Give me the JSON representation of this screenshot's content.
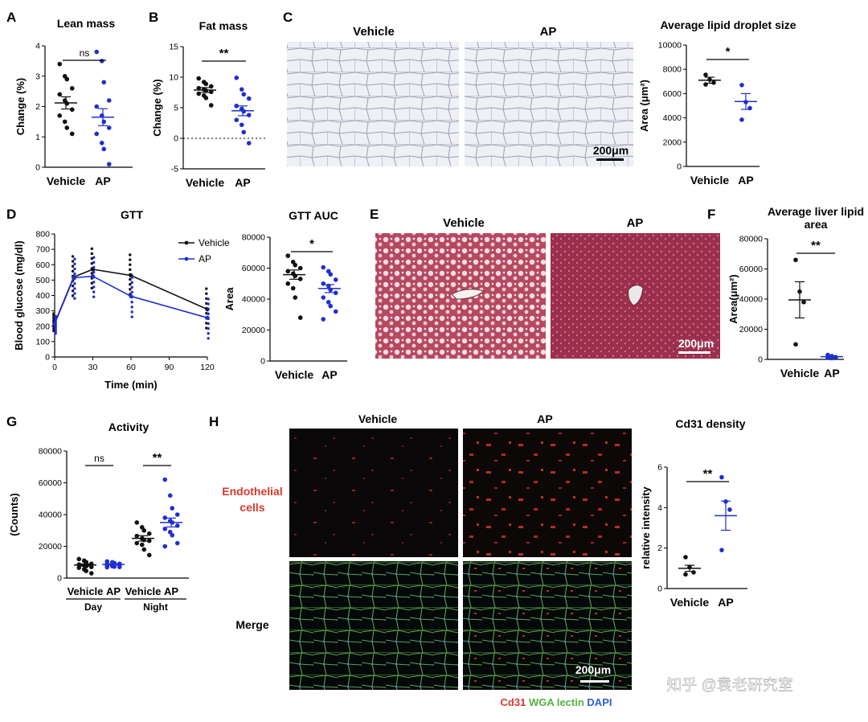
{
  "panels": {
    "A": {
      "letter": "A"
    },
    "B": {
      "letter": "B"
    },
    "C": {
      "letter": "C",
      "vehicle_title": "Vehicle",
      "ap_title": "AP",
      "scale": "200μm"
    },
    "D": {
      "letter": "D"
    },
    "E": {
      "letter": "E",
      "vehicle_title": "Vehicle",
      "ap_title": "AP",
      "scale": "200μm"
    },
    "F": {
      "letter": "F"
    },
    "G": {
      "letter": "G"
    },
    "H": {
      "letter": "H",
      "vehicle_title": "Vehicle",
      "ap_title": "AP",
      "row1_label_a": "Endothelial",
      "row1_label_b": "cells",
      "row2_label": "Merge",
      "scale": "200μm",
      "legend_cd31": "Cd31",
      "legend_wga": "WGA lectin",
      "legend_dapi": "DAPI"
    }
  },
  "watermark": "知乎 @袁老研究室",
  "colors": {
    "vehicle": "#111111",
    "ap": "#1f2fd0",
    "endothelial_label": "#d8382c",
    "cd31": "#d8382c",
    "wga": "#55b040",
    "dapi": "#2f5fd0"
  },
  "chart_data": [
    {
      "id": "A",
      "type": "scatter",
      "title": "Lean mass",
      "ylabel": "Change (%)",
      "xlabel": "",
      "categories": [
        "Vehicle",
        "AP"
      ],
      "ylim": [
        0,
        4
      ],
      "yticks": [
        0,
        1,
        2,
        3,
        4
      ],
      "series": [
        {
          "name": "Vehicle",
          "mean": 2.12,
          "sem": 0.2,
          "values": [
            3.4,
            3.0,
            2.9,
            2.6,
            2.4,
            2.2,
            2.1,
            1.9,
            1.7,
            1.5,
            1.3,
            1.1
          ]
        },
        {
          "name": "AP",
          "mean": 1.65,
          "sem": 0.28,
          "values": [
            3.8,
            3.5,
            2.8,
            2.2,
            2.0,
            1.7,
            1.5,
            1.3,
            1.1,
            0.8,
            0.6,
            0.1
          ]
        }
      ],
      "significance": "ns"
    },
    {
      "id": "B",
      "type": "scatter",
      "title": "Fat mass",
      "ylabel": "Change (%)",
      "xlabel": "",
      "categories": [
        "Vehicle",
        "AP"
      ],
      "ylim": [
        -5,
        15
      ],
      "yticks": [
        -5,
        0,
        5,
        10,
        15
      ],
      "zero_line": "dotted",
      "series": [
        {
          "name": "Vehicle",
          "mean": 7.9,
          "sem": 0.4,
          "values": [
            9.8,
            9.2,
            8.9,
            8.5,
            8.2,
            8.0,
            7.8,
            7.6,
            7.3,
            7.0,
            6.6,
            5.4
          ]
        },
        {
          "name": "AP",
          "mean": 4.5,
          "sem": 0.8,
          "values": [
            9.9,
            8.0,
            7.2,
            6.5,
            5.3,
            4.8,
            4.4,
            3.8,
            3.0,
            2.2,
            1.0,
            -0.8
          ]
        }
      ],
      "significance": "**"
    },
    {
      "id": "C",
      "type": "scatter",
      "title": "Average lipid droplet size",
      "ylabel": "Area (μm²)",
      "xlabel": "",
      "categories": [
        "Vehicle",
        "AP"
      ],
      "ylim": [
        0,
        10000
      ],
      "yticks": [
        0,
        2000,
        4000,
        6000,
        8000,
        10000
      ],
      "series": [
        {
          "name": "Vehicle",
          "mean": 7100,
          "sem": 250,
          "values": [
            7550,
            7150,
            6900,
            6750
          ]
        },
        {
          "name": "AP",
          "mean": 5350,
          "sem": 650,
          "values": [
            6700,
            5300,
            4800,
            3850
          ]
        }
      ],
      "significance": "*"
    },
    {
      "id": "D",
      "type": "line",
      "title": "GTT",
      "ylabel": "Blood glucose (mg/dl)",
      "xlabel": "Time (min)",
      "x": [
        0,
        15,
        30,
        60,
        120
      ],
      "xticks": [
        0,
        30,
        60,
        90,
        120
      ],
      "xlim": [
        0,
        120
      ],
      "ylim": [
        0,
        800
      ],
      "yticks": [
        0,
        100,
        200,
        300,
        400,
        500,
        600,
        700,
        800
      ],
      "legend": "top-right",
      "series": [
        {
          "name": "Vehicle",
          "values": [
            220,
            520,
            570,
            530,
            310
          ]
        },
        {
          "name": "AP",
          "values": [
            215,
            515,
            525,
            395,
            255
          ]
        }
      ]
    },
    {
      "id": "D2",
      "type": "scatter",
      "title": "GTT AUC",
      "ylabel": "Area",
      "xlabel": "",
      "categories": [
        "Vehicle",
        "AP"
      ],
      "ylim": [
        0,
        80000
      ],
      "yticks": [
        0,
        20000,
        40000,
        60000,
        80000
      ],
      "series": [
        {
          "name": "Vehicle",
          "mean": 55800,
          "sem": 3000,
          "values": [
            68000,
            64000,
            62000,
            60000,
            58000,
            56500,
            55000,
            53000,
            50000,
            47000,
            41000,
            28000
          ]
        },
        {
          "name": "AP",
          "mean": 46800,
          "sem": 2600,
          "values": [
            60500,
            58000,
            56000,
            52500,
            50000,
            48500,
            46000,
            44000,
            41000,
            38000,
            35500,
            32000,
            27000
          ]
        }
      ],
      "significance": "*"
    },
    {
      "id": "F",
      "type": "scatter",
      "title": "Average liver lipid area",
      "ylabel": "Area(μm²)",
      "xlabel": "",
      "categories": [
        "Vehicle",
        "AP"
      ],
      "ylim": [
        0,
        80000
      ],
      "yticks": [
        0,
        20000,
        40000,
        60000,
        80000
      ],
      "series": [
        {
          "name": "Vehicle",
          "mean": 39500,
          "sem": 12000,
          "values": [
            66000,
            45000,
            38000,
            10000
          ]
        },
        {
          "name": "AP",
          "mean": 1800,
          "sem": 600,
          "values": [
            3000,
            2200,
            1500,
            1000,
            800
          ]
        }
      ],
      "significance": "**"
    },
    {
      "id": "G",
      "type": "scatter",
      "title": "Activity",
      "ylabel": "(Counts)",
      "xlabel": "",
      "categories": [
        "Vehicle",
        "AP",
        "Vehicle",
        "AP"
      ],
      "groups": [
        "Day",
        "Night"
      ],
      "ylim": [
        0,
        80000
      ],
      "yticks": [
        0,
        20000,
        40000,
        60000,
        80000
      ],
      "series": [
        {
          "name": "Vehicle Day",
          "mean": 8200,
          "sem": 700,
          "values": [
            12000,
            11000,
            10000,
            9000,
            8500,
            8000,
            7500,
            7000,
            6500,
            5500,
            4500,
            3000
          ]
        },
        {
          "name": "AP Day",
          "mean": 8600,
          "sem": 400,
          "values": [
            10500,
            10000,
            9500,
            9000,
            8800,
            8500,
            8300,
            8000,
            7800,
            7500,
            7200,
            7000,
            6800
          ]
        },
        {
          "name": "Vehicle Night",
          "mean": 25000,
          "sem": 1700,
          "values": [
            35000,
            32000,
            30000,
            28000,
            26500,
            25000,
            24000,
            23500,
            22000,
            21000,
            18000,
            14500
          ]
        },
        {
          "name": "AP Night",
          "mean": 35000,
          "sem": 2800,
          "values": [
            62000,
            52000,
            44000,
            40000,
            38000,
            36000,
            35000,
            33000,
            31000,
            29000,
            27000,
            22000,
            20000
          ]
        }
      ],
      "significance": [
        "ns",
        "**"
      ]
    },
    {
      "id": "H",
      "type": "scatter",
      "title": "Cd31 density",
      "ylabel": "relative intensity",
      "xlabel": "",
      "categories": [
        "Vehicle",
        "AP"
      ],
      "ylim": [
        0,
        6
      ],
      "yticks": [
        0,
        2,
        4,
        6
      ],
      "series": [
        {
          "name": "Vehicle",
          "mean": 1.0,
          "sem": 0.15,
          "values": [
            1.55,
            1.05,
            0.8,
            0.7
          ]
        },
        {
          "name": "AP",
          "mean": 3.6,
          "sem": 0.72,
          "values": [
            5.5,
            4.3,
            3.9,
            1.9
          ]
        }
      ],
      "significance": "**"
    }
  ]
}
